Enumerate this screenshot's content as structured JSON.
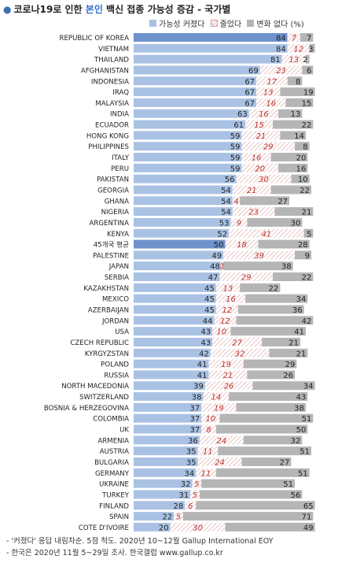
{
  "title": {
    "bullet": "●",
    "pre": "코로나19로 인한 ",
    "highlight": "본인",
    "post": " 백신 접종 가능성 증감 - 국가별"
  },
  "legend": [
    {
      "label": "가능성 커졌다",
      "color": "#a9c2e4"
    },
    {
      "label": "줄었다",
      "color": "#ffffff",
      "pattern": "hatch"
    },
    {
      "label": "변화 없다 (%)",
      "color": "#b5b5b5"
    }
  ],
  "notes": [
    "- '커졌다' 응답 내림차순. 5점 척도. 2020년 10~12월 Gallup International EOY",
    "- 한국은 2020년 11월 5~29일 조사. 한국갤럽 www.gallup.co.kr"
  ],
  "colors": {
    "increase": "#a9c2e4",
    "highlight": "#6f93cc",
    "decrease_line": "#d9a0a0",
    "decrease_text": "#c0312c",
    "nochange": "#b5b5b5"
  },
  "chart_data": {
    "type": "bar",
    "stacked": true,
    "orientation": "horizontal",
    "xlim": [
      0,
      100
    ],
    "categories": [
      "REPUBLIC OF KOREA",
      "VIETNAM",
      "THAILAND",
      "AFGHANISTAN",
      "INDONESIA",
      "IRAQ",
      "MALAYSIA",
      "INDIA",
      "ECUADOR",
      "HONG KONG",
      "PHILIPPINES",
      "ITALY",
      "PERU",
      "PAKISTAN",
      "GEORGIA",
      "GHANA",
      "NIGERIA",
      "ARGENTINA",
      "KENYA",
      "45개국 평균",
      "PALESTINE",
      "JAPAN",
      "SERBIA",
      "KAZAKHSTAN",
      "MEXICO",
      "AZERBAIJAN",
      "JORDAN",
      "USA",
      "CZECH REPUBLIC",
      "KYRGYZSTAN",
      "POLAND",
      "RUSSIA",
      "NORTH MACEDONIA",
      "SWITZERLAND",
      "BOSNIA & HERZEGOVINA",
      "COLOMBIA",
      "UK",
      "ARMENIA",
      "AUSTRIA",
      "BULGARIA",
      "GERMANY",
      "UKRAINE",
      "TURKEY",
      "FINLAND",
      "SPAIN",
      "COTE D'IVOIRE"
    ],
    "highlight": [
      "REPUBLIC OF KOREA",
      "45개국 평균"
    ],
    "series": [
      {
        "name": "가능성 커졌다",
        "values": [
          84,
          84,
          81,
          69,
          67,
          67,
          67,
          63,
          61,
          59,
          59,
          59,
          59,
          56,
          54,
          54,
          54,
          53,
          52,
          50,
          49,
          48,
          47,
          45,
          45,
          45,
          44,
          43,
          43,
          42,
          41,
          41,
          39,
          38,
          37,
          37,
          37,
          36,
          35,
          35,
          34,
          32,
          31,
          28,
          22,
          20
        ]
      },
      {
        "name": "줄었다",
        "values": [
          7,
          12,
          13,
          23,
          17,
          13,
          16,
          16,
          15,
          21,
          29,
          16,
          20,
          30,
          21,
          4,
          23,
          9,
          41,
          18,
          39,
          1,
          29,
          13,
          16,
          12,
          12,
          10,
          27,
          32,
          19,
          21,
          26,
          14,
          19,
          10,
          8,
          24,
          11,
          24,
          11,
          5,
          5,
          6,
          5,
          30
        ]
      },
      {
        "name": "변화 없다",
        "values": [
          7,
          3,
          2,
          6,
          8,
          19,
          15,
          13,
          22,
          14,
          8,
          20,
          16,
          10,
          22,
          27,
          21,
          30,
          5,
          28,
          9,
          38,
          22,
          22,
          34,
          36,
          42,
          41,
          21,
          21,
          29,
          26,
          34,
          43,
          38,
          51,
          50,
          32,
          51,
          27,
          51,
          51,
          56,
          65,
          71,
          49
        ]
      }
    ]
  }
}
